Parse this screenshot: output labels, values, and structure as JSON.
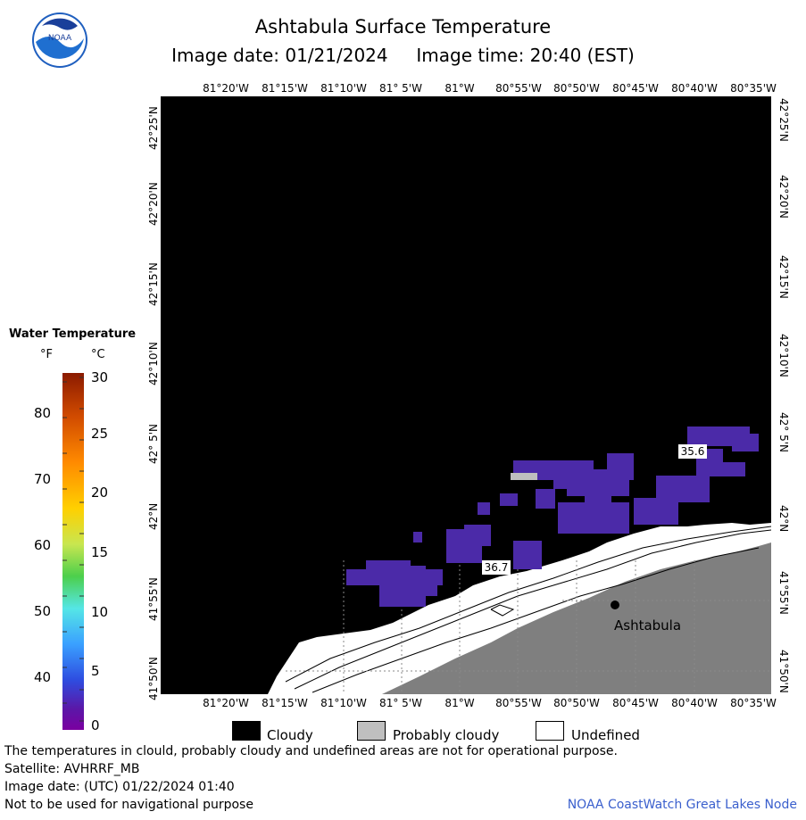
{
  "header": {
    "title": "Ashtabula Surface Temperature",
    "subtitle": "Image date: 01/21/2024     Image time: 20:40 (EST)",
    "logo_text": "NOAA"
  },
  "map": {
    "lon_labels": [
      "81°20'W",
      "81°15'W",
      "81°10'W",
      "81° 5'W",
      "81°W",
      "80°55'W",
      "80°50'W",
      "80°45'W",
      "80°40'W",
      "80°35'W"
    ],
    "lat_labels": [
      "42°25'N",
      "42°20'N",
      "42°15'N",
      "42°10'N",
      "42° 5'N",
      "42°N",
      "41°55'N",
      "41°50'N"
    ],
    "temp_labels": [
      "35.6",
      "36.7"
    ],
    "city": "Ashtabula",
    "colors": {
      "cloud": "#000000",
      "land": "#7f7f7f",
      "water_cold": "#4b2aa8",
      "probably_cloudy": "#bfbfbf"
    }
  },
  "legend": {
    "title": "Water Temperature",
    "f_unit": "°F",
    "c_unit": "°C",
    "f_ticks": [
      "80",
      "70",
      "60",
      "50",
      "40"
    ],
    "c_ticks": [
      "30",
      "25",
      "20",
      "15",
      "10",
      "5",
      "0"
    ],
    "items": [
      {
        "label": "Cloudy",
        "color": "#000000"
      },
      {
        "label": "Probably cloudy",
        "color": "#bfbfbf"
      },
      {
        "label": "Undefined",
        "color": "#ffffff"
      }
    ]
  },
  "footer": {
    "note": "The temperatures in clould, probably cloudy and undefined areas are not for operational purpose.",
    "satellite": "Satellite: AVHRRF_MB",
    "utc_date": "Image date: (UTC) 01/22/2024  01:40",
    "nav": "Not to be used for navigational purpose",
    "credit": "NOAA CoastWatch Great Lakes Node"
  }
}
